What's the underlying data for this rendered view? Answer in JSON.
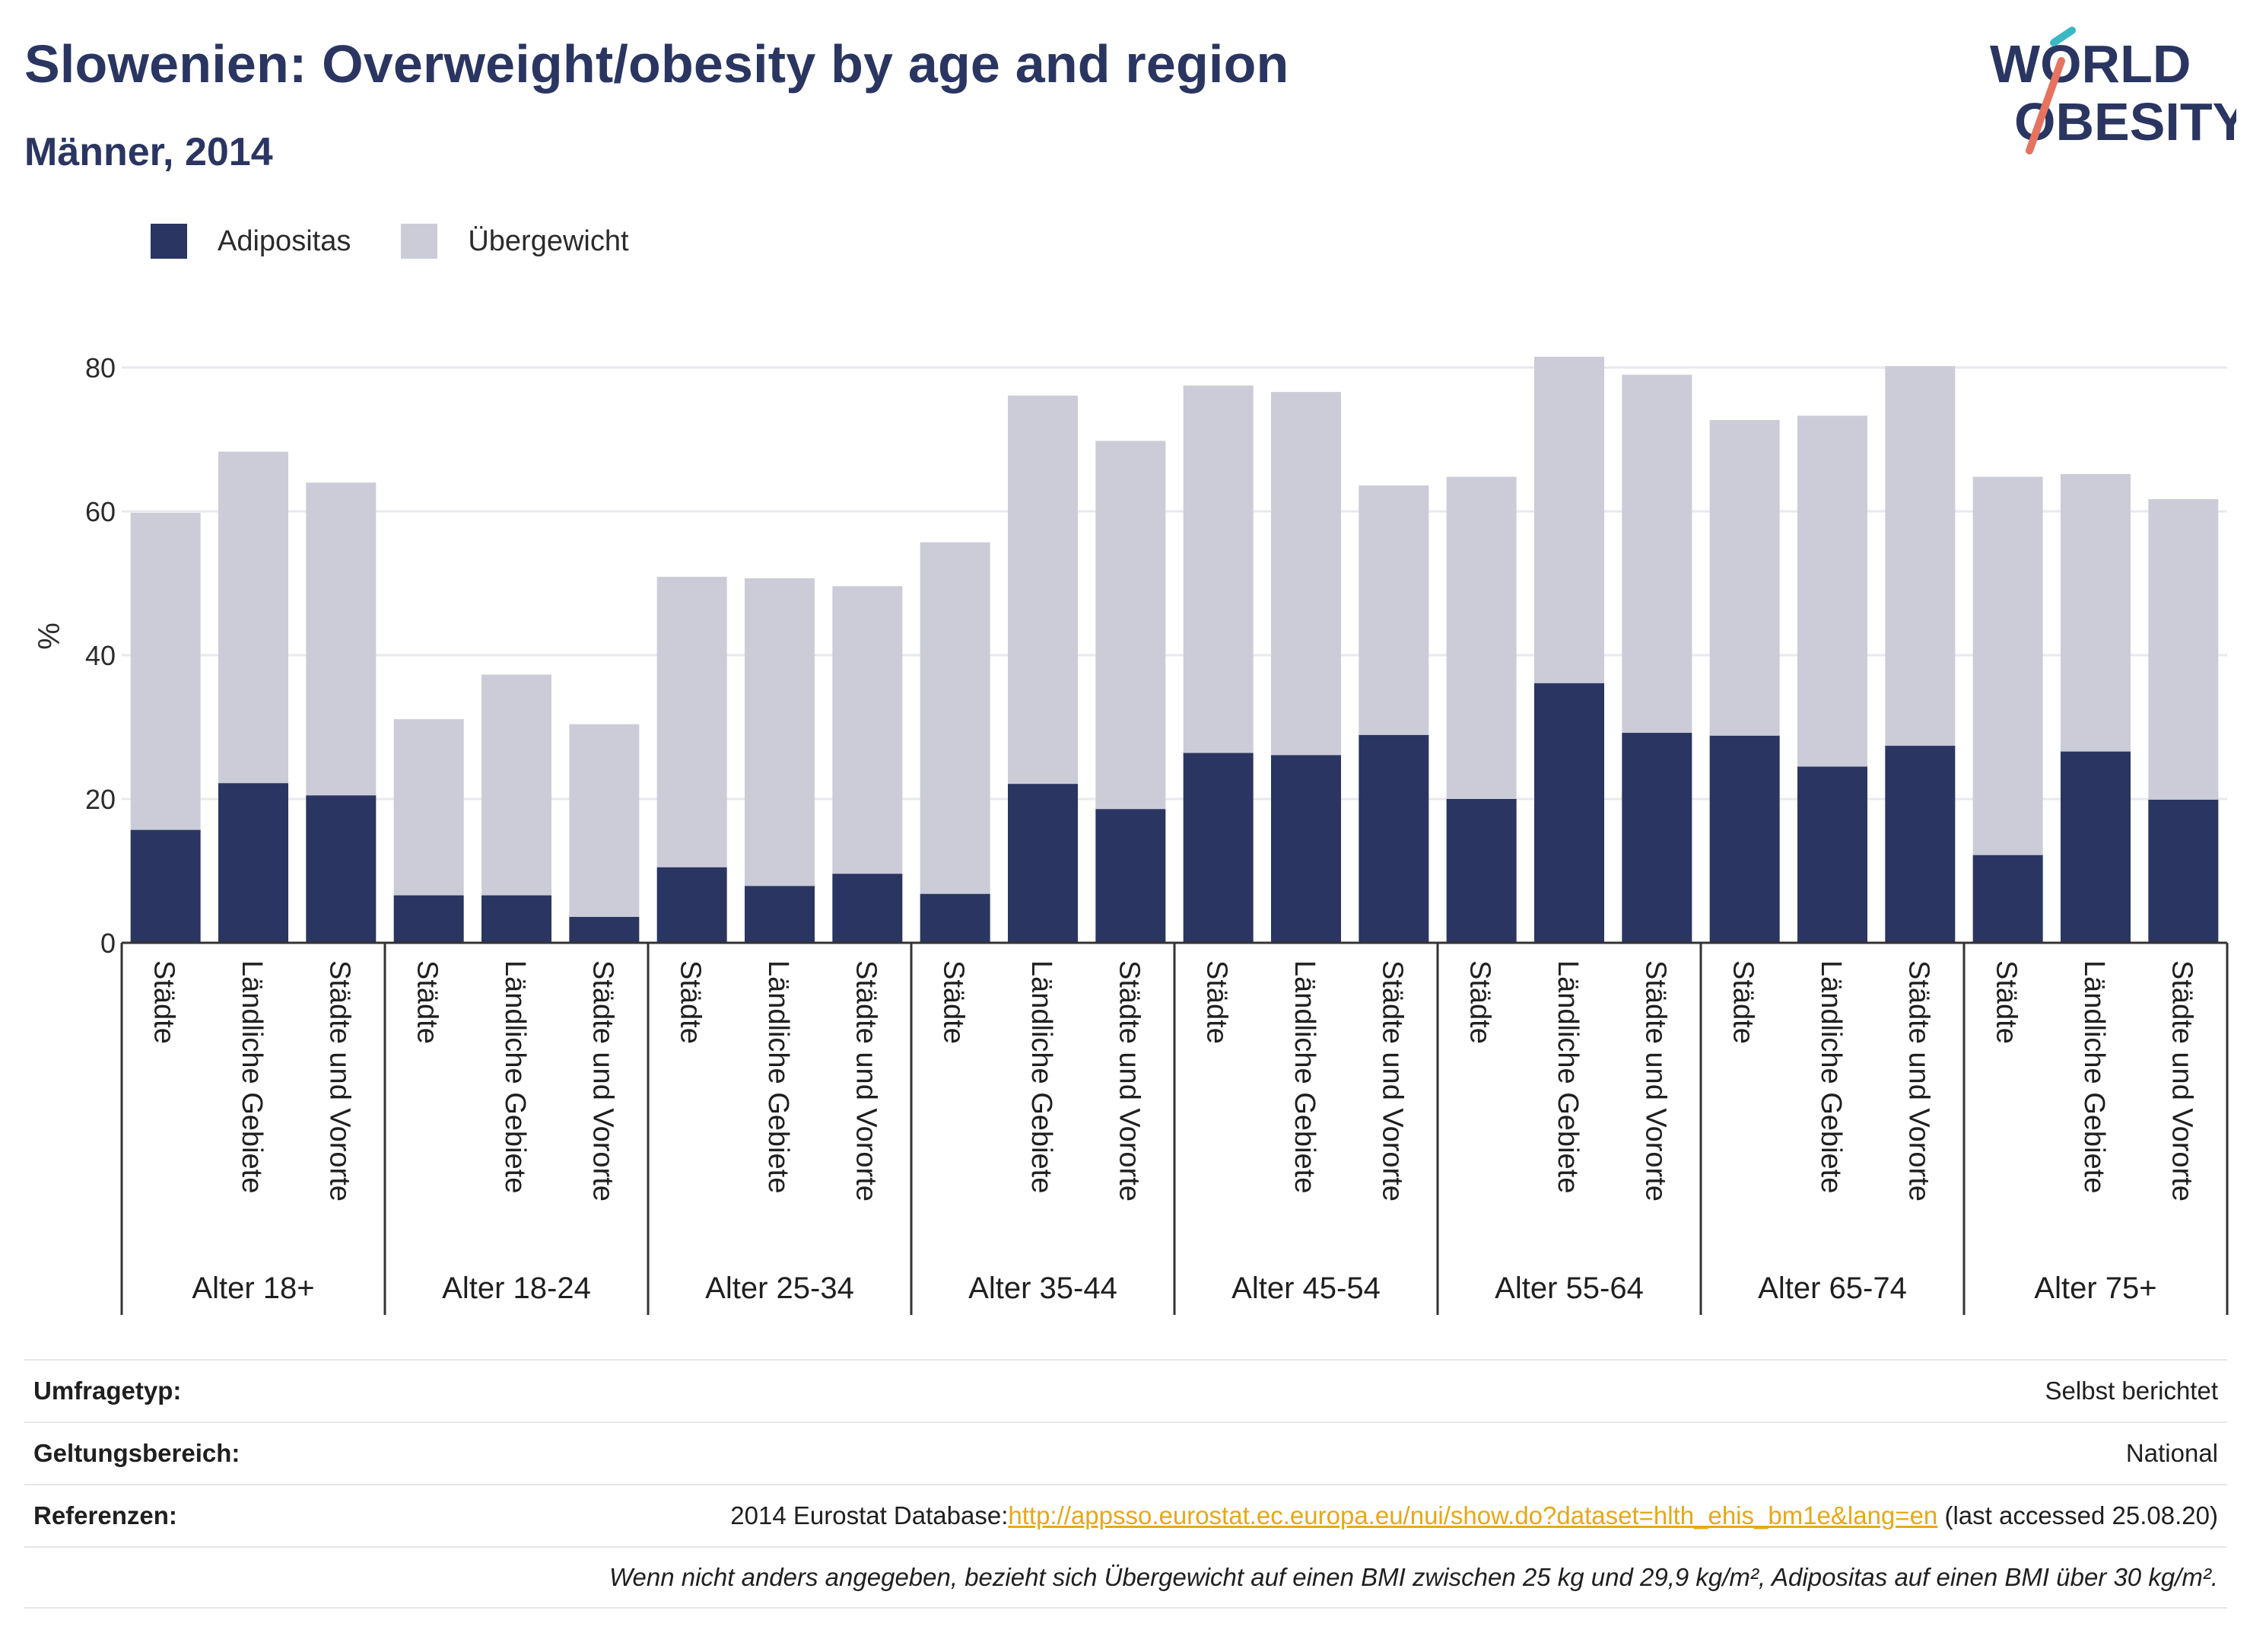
{
  "header": {
    "title": "Slowenien: Overweight/obesity by age and region",
    "subtitle": "Männer, 2014",
    "logo_line1": "WORLD",
    "logo_line2": "OBESITY"
  },
  "legend": [
    {
      "label": "Adipositas",
      "color": "#2a3561"
    },
    {
      "label": "Übergewicht",
      "color": "#cbccd8"
    }
  ],
  "chart_data": {
    "type": "bar",
    "stacked": true,
    "ylabel": "%",
    "ylim": [
      0,
      84
    ],
    "yticks": [
      0,
      20,
      40,
      60,
      80
    ],
    "grid": true,
    "legend_position": "top-left",
    "groups": [
      "Alter 18+",
      "Alter 18-24",
      "Alter 25-34",
      "Alter 35-44",
      "Alter 45-54",
      "Alter 55-64",
      "Alter 65-74",
      "Alter 75+"
    ],
    "categories": [
      "Städte",
      "Ländliche Gebiete",
      "Städte und Vororte"
    ],
    "series": [
      {
        "name": "Adipositas",
        "color": "#2a3561",
        "values": [
          [
            15.7,
            22.2,
            20.5
          ],
          [
            6.6,
            6.6,
            3.6
          ],
          [
            10.5,
            7.9,
            9.6
          ],
          [
            6.8,
            22.1,
            18.6
          ],
          [
            26.4,
            26.1,
            28.9
          ],
          [
            20.0,
            36.1,
            29.2
          ],
          [
            28.8,
            24.5,
            27.4
          ],
          [
            12.2,
            26.6,
            19.9
          ]
        ]
      },
      {
        "name": "Übergewicht",
        "color": "#cbccd8",
        "values": [
          [
            44.1,
            46.1,
            43.5
          ],
          [
            24.5,
            30.7,
            26.8
          ],
          [
            40.4,
            42.8,
            40.0
          ],
          [
            48.9,
            54.0,
            51.2
          ],
          [
            51.1,
            50.5,
            34.7
          ],
          [
            44.8,
            45.4,
            49.8
          ],
          [
            43.9,
            48.8,
            52.8
          ],
          [
            52.6,
            38.6,
            41.8
          ]
        ]
      }
    ]
  },
  "footer": {
    "rows": [
      {
        "label": "Umfragetyp:",
        "value": "Selbst berichtet"
      },
      {
        "label": "Geltungsbereich:",
        "value": "National"
      }
    ],
    "references": {
      "label": "Referenzen:",
      "prefix": "2014 Eurostat Database:",
      "link": "http://appsso.eurostat.ec.europa.eu/nui/show.do?dataset=hlth_ehis_bm1e&lang=en",
      "suffix": " (last accessed 25.08.20)"
    },
    "note": "Wenn nicht anders angegeben, bezieht sich Übergewicht auf einen BMI zwischen 25 kg und 29,9 kg/m², Adipositas auf einen BMI über 30 kg/m²."
  }
}
